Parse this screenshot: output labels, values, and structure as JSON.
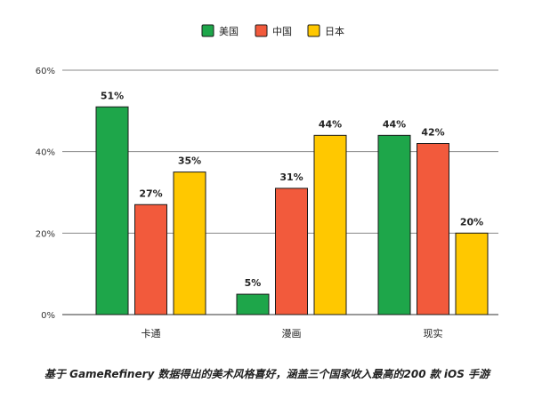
{
  "chart_data": {
    "type": "bar",
    "categories": [
      "卡通",
      "漫画",
      "现实"
    ],
    "series": [
      {
        "name": "美国",
        "color": "#1ea64a",
        "values": [
          51,
          5,
          44
        ],
        "labels": [
          "51%",
          "5%",
          "44%"
        ]
      },
      {
        "name": "中国",
        "color": "#f25a3c",
        "values": [
          27,
          31,
          42
        ],
        "labels": [
          "27%",
          "31%",
          "42%"
        ]
      },
      {
        "name": "日本",
        "color": "#ffc800",
        "values": [
          35,
          44,
          20
        ],
        "labels": [
          "35%",
          "44%",
          "20%"
        ]
      }
    ],
    "ylim": [
      0,
      60
    ],
    "yticks": [
      0,
      20,
      40,
      60
    ],
    "ytick_labels": [
      "0%",
      "20%",
      "40%",
      "60%"
    ],
    "grid": true,
    "legend_position": "top-center"
  },
  "caption": "基于 GameRefinery 数据得出的美术风格喜好，涵盖三个国家收入最高的200 款 iOS 手游"
}
